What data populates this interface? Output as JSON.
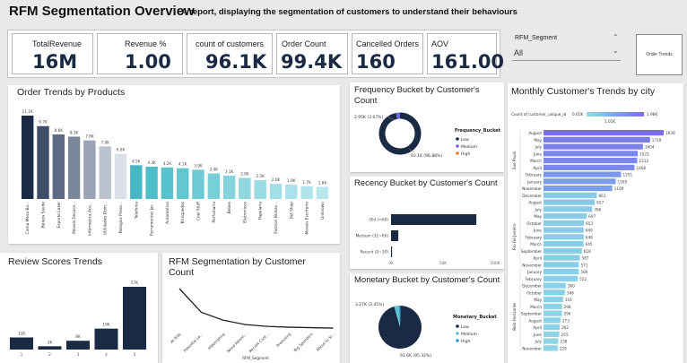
{
  "header": {
    "title": "RFM Segmentation Overview",
    "subtitle": "A report, displaying the segmentation of customers to understand their behaviours"
  },
  "kpis": [
    {
      "label": "TotalRevenue",
      "value": "16M"
    },
    {
      "label": "Revenue %",
      "value": "1.00"
    },
    {
      "label": "count of customers",
      "value": "96.1K"
    },
    {
      "label": "Order Count",
      "value": "99.4K"
    },
    {
      "label": "Cancelled Orders",
      "value": "160"
    },
    {
      "label": "AOV",
      "value": "161.00"
    }
  ],
  "slicer": {
    "label": "RFM_Segment",
    "value": "All"
  },
  "nav_button": {
    "label": "Order Trends"
  },
  "colors": {
    "dark": "#1a2a44",
    "teal": "#5cc5cf",
    "purple": "#7b6ee8",
    "background": "#e9e9e9"
  },
  "charts": {
    "order_trends": {
      "title": "Order Trends by Products"
    },
    "frequency": {
      "title": "Frequency Bucket by Customer's Count",
      "legend_title": "Frequency_Bucket",
      "label_low": "93.1K (96.88%)",
      "label_small": "2.95K (3.07%)"
    },
    "recency": {
      "title": "Recency Bucket by Customer's Count",
      "ticks": [
        "0K",
        "50K",
        "100K"
      ]
    },
    "monetary": {
      "title": "Monetary Bucket by Customer's Count",
      "legend_title": "Monetary_Bucket",
      "label_low": "91.6K (95.32%)",
      "label_small": "3.27K (3.41%)"
    },
    "review": {
      "title": "Review Scores Trends"
    },
    "rfm": {
      "title": "RFM Segmentation by Customer Count",
      "xlabel": "RFM_Segment"
    },
    "monthly": {
      "title": "Monthly Customer's Trends by city",
      "legend_label": "Count of customer_unique_id",
      "legend_min": "0.01K",
      "legend_mid": "1.01K",
      "legend_max": "1.96K"
    }
  },
  "chart_data": [
    {
      "type": "bar",
      "title": "Order Trends by Products",
      "categories": [
        "Cama Mesa Ba...",
        "Beleza Saude",
        "Esporte Lazer",
        "Moveis Decora...",
        "Informatica Ace...",
        "Utilidades Dom...",
        "Relogios Prese...",
        "Telefonia",
        "Ferramentas Jar...",
        "Automotivo",
        "Brinquedos",
        "Cool Stuff",
        "Perfumaria",
        "Bebes",
        "Eletronicos",
        "Papelaria",
        "Fashion Bolsas...",
        "Pet Shop",
        "Moveis Escritorio",
        "Unknown"
      ],
      "values": [
        11.1,
        9.7,
        8.6,
        8.3,
        7.8,
        7.0,
        6.0,
        4.5,
        4.3,
        4.2,
        4.1,
        3.9,
        3.4,
        3.1,
        2.8,
        2.5,
        2.0,
        1.9,
        1.7,
        1.6
      ],
      "value_labels": [
        "11.1K",
        "9.7K",
        "8.6K",
        "8.3K",
        "7.8K",
        "7.0K",
        "6.0K",
        "4.5K",
        "4.3K",
        "4.2K",
        "4.1K",
        "3.9K",
        "3.4K",
        "3.1K",
        "2.8K",
        "2.5K",
        "2.0K",
        "1.9K",
        "1.7K",
        "1.6K"
      ]
    },
    {
      "type": "pie",
      "title": "Frequency Bucket by Customer's Count",
      "categories": [
        "Low",
        "Medium",
        "High"
      ],
      "values": [
        93.1,
        2.95,
        0.05
      ],
      "colors": [
        "#1a2a44",
        "#6c63e0",
        "#f07a2d"
      ]
    },
    {
      "type": "bar",
      "title": "Recency Bucket by Customer's Count",
      "categories": [
        "Old (>60)",
        "Medium (31~60)",
        "Recent (0~30)"
      ],
      "values": [
        82,
        7,
        1
      ],
      "xlim": [
        0,
        100
      ]
    },
    {
      "type": "pie",
      "title": "Monetary Bucket by Customer's Count",
      "categories": [
        "Low",
        "Medium",
        "High"
      ],
      "values": [
        91.6,
        3.27,
        1.2
      ],
      "colors": [
        "#1a2a44",
        "#5cc5cf",
        "#2b9bd1"
      ]
    },
    {
      "type": "bar",
      "title": "Review Scores Trends",
      "categories": [
        "1",
        "2",
        "3",
        "4",
        "5"
      ],
      "values": [
        11,
        3,
        8,
        19,
        57
      ],
      "value_labels": [
        "11K",
        "3K",
        "8K",
        "19K",
        "57K"
      ]
    },
    {
      "type": "line",
      "title": "RFM Segmentation by Customer Count",
      "categories": [
        "At Risk",
        "Potential Lo...",
        "Hibernating",
        "Need Attent...",
        "Recent Cust...",
        "Promising",
        "Big Spenders",
        "About to Sl..."
      ],
      "values": [
        48,
        21,
        12,
        7,
        5,
        4,
        3.5,
        3
      ],
      "xlabel": "RFM_Segment"
    },
    {
      "type": "bar",
      "title": "Monthly Customer's Trends by city",
      "groups": [
        "Sao Paulo",
        "Rio De Janeiro",
        "Belo Horizonte"
      ],
      "categories": [
        "August",
        "May",
        "July",
        "June",
        "March",
        "April",
        "February",
        "January",
        "November",
        "December",
        "August",
        "July",
        "May",
        "October",
        "June",
        "February",
        "March",
        "September",
        "April",
        "November",
        "January",
        "February",
        "December",
        "October",
        "May",
        "March",
        "September",
        "August",
        "April",
        "June",
        "July",
        "November"
      ],
      "values": [
        1939,
        1719,
        1604,
        1521,
        1512,
        1468,
        1251,
        1165,
        1109,
        861,
        827,
        786,
        697,
        653,
        649,
        648,
        645,
        618,
        587,
        571,
        569,
        552,
        360,
        346,
        316,
        298,
        296,
        273,
        262,
        255,
        238,
        229
      ],
      "value_labels": [
        "1939",
        "1719",
        "1604",
        "1521",
        "1512",
        "1468",
        "1251",
        "1165",
        "1109",
        "861",
        "827",
        "786",
        "697",
        "653",
        "649",
        "648",
        "645",
        "618",
        "587",
        "571",
        "569",
        "552",
        "360",
        "346",
        "316",
        "298",
        "296",
        "273",
        "262",
        "255",
        "238",
        "229"
      ]
    }
  ]
}
